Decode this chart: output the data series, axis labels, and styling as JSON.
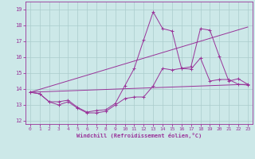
{
  "xlabel": "Windchill (Refroidissement éolien,°C)",
  "bg_color": "#cce8e8",
  "grid_color": "#aacccc",
  "line_color": "#993399",
  "xlim": [
    -0.5,
    23.5
  ],
  "ylim": [
    11.8,
    19.5
  ],
  "yticks": [
    12,
    13,
    14,
    15,
    16,
    17,
    18,
    19
  ],
  "xticks": [
    0,
    1,
    2,
    3,
    4,
    5,
    6,
    7,
    8,
    9,
    10,
    11,
    12,
    13,
    14,
    15,
    16,
    17,
    18,
    19,
    20,
    21,
    22,
    23
  ],
  "series": [
    {
      "x": [
        0,
        1,
        2,
        3,
        4,
        5,
        6,
        7,
        8,
        9,
        10,
        11,
        12,
        13,
        14,
        15,
        16,
        17,
        18,
        19,
        20,
        21,
        22,
        23
      ],
      "y": [
        13.8,
        13.7,
        13.2,
        13.0,
        13.2,
        12.8,
        12.5,
        12.5,
        12.6,
        13.0,
        13.4,
        13.5,
        13.5,
        14.2,
        15.3,
        15.2,
        15.3,
        15.25,
        15.95,
        14.5,
        14.6,
        14.6,
        14.3,
        14.25
      ],
      "marker": true
    },
    {
      "x": [
        0,
        1,
        2,
        3,
        4,
        5,
        6,
        7,
        8,
        9,
        10,
        11,
        12,
        13,
        14,
        15,
        16,
        17,
        18,
        19,
        20,
        21,
        22,
        23
      ],
      "y": [
        13.8,
        13.7,
        13.2,
        13.2,
        13.3,
        12.85,
        12.55,
        12.65,
        12.7,
        13.1,
        14.2,
        15.3,
        17.1,
        18.85,
        17.8,
        17.65,
        15.3,
        15.4,
        17.8,
        17.7,
        16.05,
        14.5,
        14.65,
        14.3
      ],
      "marker": true
    },
    {
      "x": [
        0,
        23
      ],
      "y": [
        13.8,
        17.9
      ],
      "marker": false
    },
    {
      "x": [
        0,
        23
      ],
      "y": [
        13.8,
        14.3
      ],
      "marker": false
    }
  ]
}
